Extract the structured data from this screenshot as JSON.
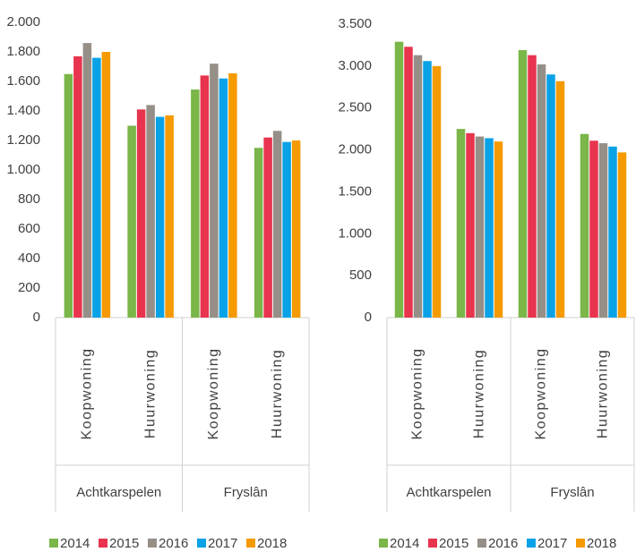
{
  "chart_data": [
    {
      "type": "bar",
      "categories": [
        "Koopwoning",
        "Huurwoning",
        "Koopwoning",
        "Huurwoning"
      ],
      "groups": [
        "Achtkarspelen",
        "Fryslân"
      ],
      "series": [
        {
          "name": "2014",
          "color": "#7ab648",
          "values": [
            1650,
            1300,
            1545,
            1150
          ]
        },
        {
          "name": "2015",
          "color": "#e8344e",
          "values": [
            1770,
            1410,
            1640,
            1220
          ]
        },
        {
          "name": "2016",
          "color": "#958f88",
          "values": [
            1860,
            1440,
            1720,
            1265
          ]
        },
        {
          "name": "2017",
          "color": "#0aa2e6",
          "values": [
            1760,
            1360,
            1620,
            1190
          ]
        },
        {
          "name": "2018",
          "color": "#f59a00",
          "values": [
            1800,
            1370,
            1655,
            1200
          ]
        }
      ],
      "ylim": [
        0,
        2000
      ],
      "yticks": [
        0,
        200,
        400,
        600,
        800,
        {
          "value": 1000,
          "label": "1.000"
        },
        {
          "value": 1200,
          "label": "1.200"
        },
        {
          "value": 1400,
          "label": "1.400"
        },
        {
          "value": 1600,
          "label": "1.600"
        },
        {
          "value": 1800,
          "label": "1.800"
        },
        {
          "value": 2000,
          "label": "2.000"
        }
      ]
    },
    {
      "type": "bar",
      "categories": [
        "Koopwoning",
        "Huurwoning",
        "Koopwoning",
        "Huurwoning"
      ],
      "groups": [
        "Achtkarspelen",
        "Fryslân"
      ],
      "series": [
        {
          "name": "2014",
          "color": "#7ab648",
          "values": [
            3290,
            2250,
            3190,
            2190
          ]
        },
        {
          "name": "2015",
          "color": "#e8344e",
          "values": [
            3230,
            2200,
            3130,
            2110
          ]
        },
        {
          "name": "2016",
          "color": "#958f88",
          "values": [
            3130,
            2160,
            3020,
            2080
          ]
        },
        {
          "name": "2017",
          "color": "#0aa2e6",
          "values": [
            3060,
            2140,
            2900,
            2040
          ]
        },
        {
          "name": "2018",
          "color": "#f59a00",
          "values": [
            3000,
            2100,
            2820,
            1970
          ]
        }
      ],
      "ylim": [
        0,
        3500
      ],
      "yticks": [
        0,
        500,
        {
          "value": 1000,
          "label": "1.000"
        },
        {
          "value": 1500,
          "label": "1.500"
        },
        {
          "value": 2000,
          "label": "2.000"
        },
        {
          "value": 2500,
          "label": "2.500"
        },
        {
          "value": 3000,
          "label": "3.000"
        },
        {
          "value": 3500,
          "label": "3.500"
        }
      ]
    }
  ]
}
